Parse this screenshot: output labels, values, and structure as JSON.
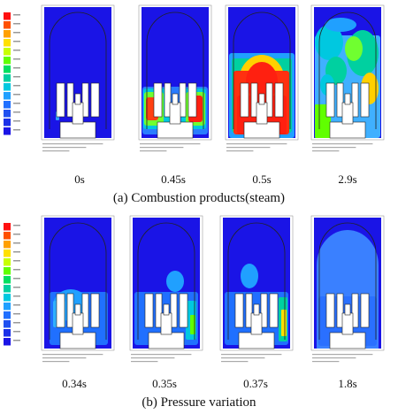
{
  "panel_a": {
    "times": [
      "0s",
      "0.45s",
      "0.5s",
      "2.9s"
    ],
    "caption": "(a)  Combustion products(steam)"
  },
  "panel_b": {
    "times": [
      "0.34s",
      "0.35s",
      "0.37s",
      "1.8s"
    ],
    "caption": "(b)  Pressure variation"
  }
}
